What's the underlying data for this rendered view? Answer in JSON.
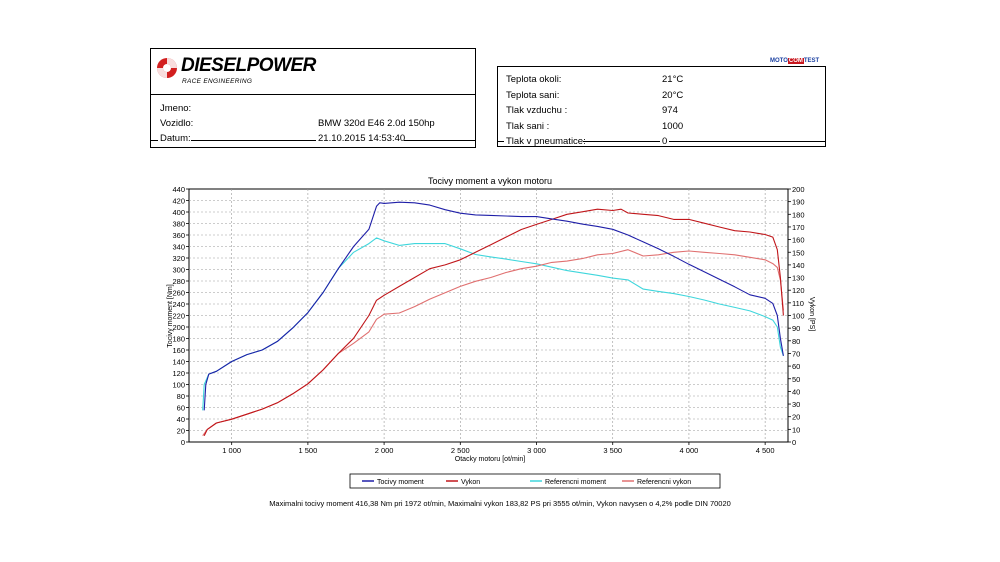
{
  "header": {
    "brand": "DIESELPOWER",
    "brand_sub": "RACE ENGINEERING",
    "badge": {
      "left": "MOTO",
      "mid": "COM",
      "right": "TEST"
    }
  },
  "vehicle": {
    "jmeno_label": "Jmeno:",
    "jmeno_value": "",
    "vozidlo_label": "Vozidlo:",
    "vozidlo_value": "BMW 320d E46 2.0d 150hp",
    "datum_label": "Datum:",
    "datum_value": "21.10.2015 14:53:40"
  },
  "conditions": [
    {
      "label": "Teplota okoli:",
      "value": "21°C"
    },
    {
      "label": "Teplota sani:",
      "value": "20°C"
    },
    {
      "label": "Tlak vzduchu :",
      "value": "974"
    },
    {
      "label": "Tlak sani :",
      "value": "1000"
    },
    {
      "label": "Tlak v pneumatice:",
      "value": "0"
    }
  ],
  "footer": "Maximalni tocivy moment 416,38 Nm pri 1972 ot/min,  Maximalni vykon 183,82 PS pri 3555 ot/min,  Vykon navysen o 4,2% podle DIN 70020",
  "colors": {
    "torque": "#1f1fa8",
    "power": "#c0161a",
    "ref_torque": "#3fd6dc",
    "ref_power": "#e07070"
  },
  "chart_data": {
    "type": "line",
    "title": "Tocivy moment a vykon motoru",
    "xlabel": "Otacky motoru [ot/min]",
    "ylabel": "Tocivy moment [Nm]",
    "y2label": "Vykon [PS]",
    "xlim": [
      720,
      4650
    ],
    "ylim": [
      0,
      440
    ],
    "y2lim": [
      0,
      200
    ],
    "x_ticks": [
      1000,
      1500,
      2000,
      2500,
      3000,
      3500,
      4000,
      4500
    ],
    "x_tick_labels": [
      "1 000",
      "1 500",
      "2 000",
      "2 500",
      "3 000",
      "3 500",
      "4 000",
      "4 500"
    ],
    "y_ticks": [
      0,
      20,
      40,
      60,
      80,
      100,
      120,
      140,
      160,
      180,
      200,
      220,
      240,
      260,
      280,
      300,
      320,
      340,
      360,
      380,
      400,
      420,
      440
    ],
    "y2_ticks": [
      0,
      10,
      20,
      30,
      40,
      50,
      60,
      70,
      80,
      90,
      100,
      110,
      120,
      130,
      140,
      150,
      160,
      170,
      180,
      190,
      200
    ],
    "grid": true,
    "legend_position": "bottom",
    "series": [
      {
        "name": "Tocivy moment",
        "axis": "left",
        "x": [
          820,
          830,
          850,
          900,
          1000,
          1100,
          1200,
          1300,
          1400,
          1500,
          1600,
          1700,
          1800,
          1900,
          1950,
          1972,
          2000,
          2100,
          2200,
          2300,
          2400,
          2500,
          2600,
          2700,
          2800,
          2900,
          3000,
          3100,
          3200,
          3300,
          3400,
          3500,
          3600,
          3700,
          3800,
          3900,
          4000,
          4100,
          4200,
          4300,
          4400,
          4500,
          4550,
          4580,
          4600,
          4620
        ],
        "y": [
          55,
          100,
          118,
          123,
          140,
          152,
          160,
          175,
          198,
          225,
          260,
          302,
          340,
          370,
          410,
          416,
          415,
          417,
          416,
          412,
          404,
          398,
          395,
          394,
          393,
          392,
          392,
          388,
          384,
          379,
          375,
          370,
          360,
          348,
          336,
          323,
          309,
          296,
          283,
          270,
          256,
          250,
          241,
          220,
          180,
          150
        ]
      },
      {
        "name": "Vykon",
        "axis": "right",
        "x": [
          820,
          840,
          900,
          1000,
          1100,
          1200,
          1300,
          1400,
          1500,
          1600,
          1700,
          1800,
          1900,
          1950,
          2000,
          2100,
          2200,
          2300,
          2400,
          2500,
          2600,
          2700,
          2800,
          2900,
          3000,
          3100,
          3200,
          3300,
          3400,
          3500,
          3555,
          3600,
          3700,
          3800,
          3900,
          4000,
          4100,
          4200,
          4300,
          4400,
          4450,
          4500,
          4550,
          4580,
          4600,
          4620
        ],
        "y": [
          5,
          10,
          15,
          18,
          22,
          26,
          31,
          38,
          46,
          57,
          70,
          82,
          100,
          112,
          116,
          123,
          130,
          137,
          140,
          144,
          150,
          156,
          162,
          168,
          172,
          176,
          180,
          182,
          184,
          183,
          184,
          181,
          180,
          179,
          176,
          176,
          173,
          170,
          167,
          166,
          165,
          164,
          162,
          152,
          130,
          100
        ]
      },
      {
        "name": "Referencni moment",
        "axis": "left",
        "x": [
          810,
          820,
          850,
          900,
          1000,
          1100,
          1200,
          1300,
          1400,
          1500,
          1600,
          1700,
          1800,
          1900,
          1950,
          2000,
          2100,
          2200,
          2300,
          2400,
          2500,
          2600,
          2700,
          2800,
          2900,
          3000,
          3100,
          3200,
          3300,
          3400,
          3500,
          3600,
          3700,
          3800,
          3900,
          4000,
          4100,
          4200,
          4300,
          4400,
          4500,
          4550,
          4580,
          4600,
          4620
        ],
        "y": [
          55,
          100,
          118,
          123,
          140,
          152,
          160,
          175,
          198,
          225,
          260,
          302,
          330,
          345,
          355,
          350,
          342,
          345,
          345,
          345,
          336,
          326,
          322,
          318,
          314,
          310,
          304,
          298,
          294,
          290,
          285,
          282,
          266,
          262,
          258,
          253,
          247,
          240,
          234,
          228,
          218,
          212,
          200,
          165,
          150
        ]
      },
      {
        "name": "Referencni vykon",
        "axis": "right",
        "x": [
          810,
          840,
          900,
          1000,
          1100,
          1200,
          1300,
          1400,
          1500,
          1600,
          1700,
          1800,
          1900,
          1950,
          2000,
          2100,
          2200,
          2300,
          2400,
          2500,
          2600,
          2700,
          2800,
          2900,
          3000,
          3100,
          3200,
          3300,
          3400,
          3500,
          3600,
          3700,
          3800,
          3900,
          4000,
          4100,
          4200,
          4300,
          4400,
          4450,
          4500,
          4550,
          4580,
          4600,
          4620
        ],
        "y": [
          5,
          10,
          15,
          18,
          22,
          26,
          31,
          38,
          46,
          57,
          70,
          78,
          87,
          97,
          101,
          102,
          107,
          113,
          118,
          123,
          127,
          130,
          134,
          137,
          139,
          142,
          143,
          145,
          148,
          149,
          152,
          147,
          148,
          150,
          151,
          150,
          149,
          148,
          146,
          145,
          144,
          141,
          138,
          128,
          104
        ]
      }
    ]
  }
}
